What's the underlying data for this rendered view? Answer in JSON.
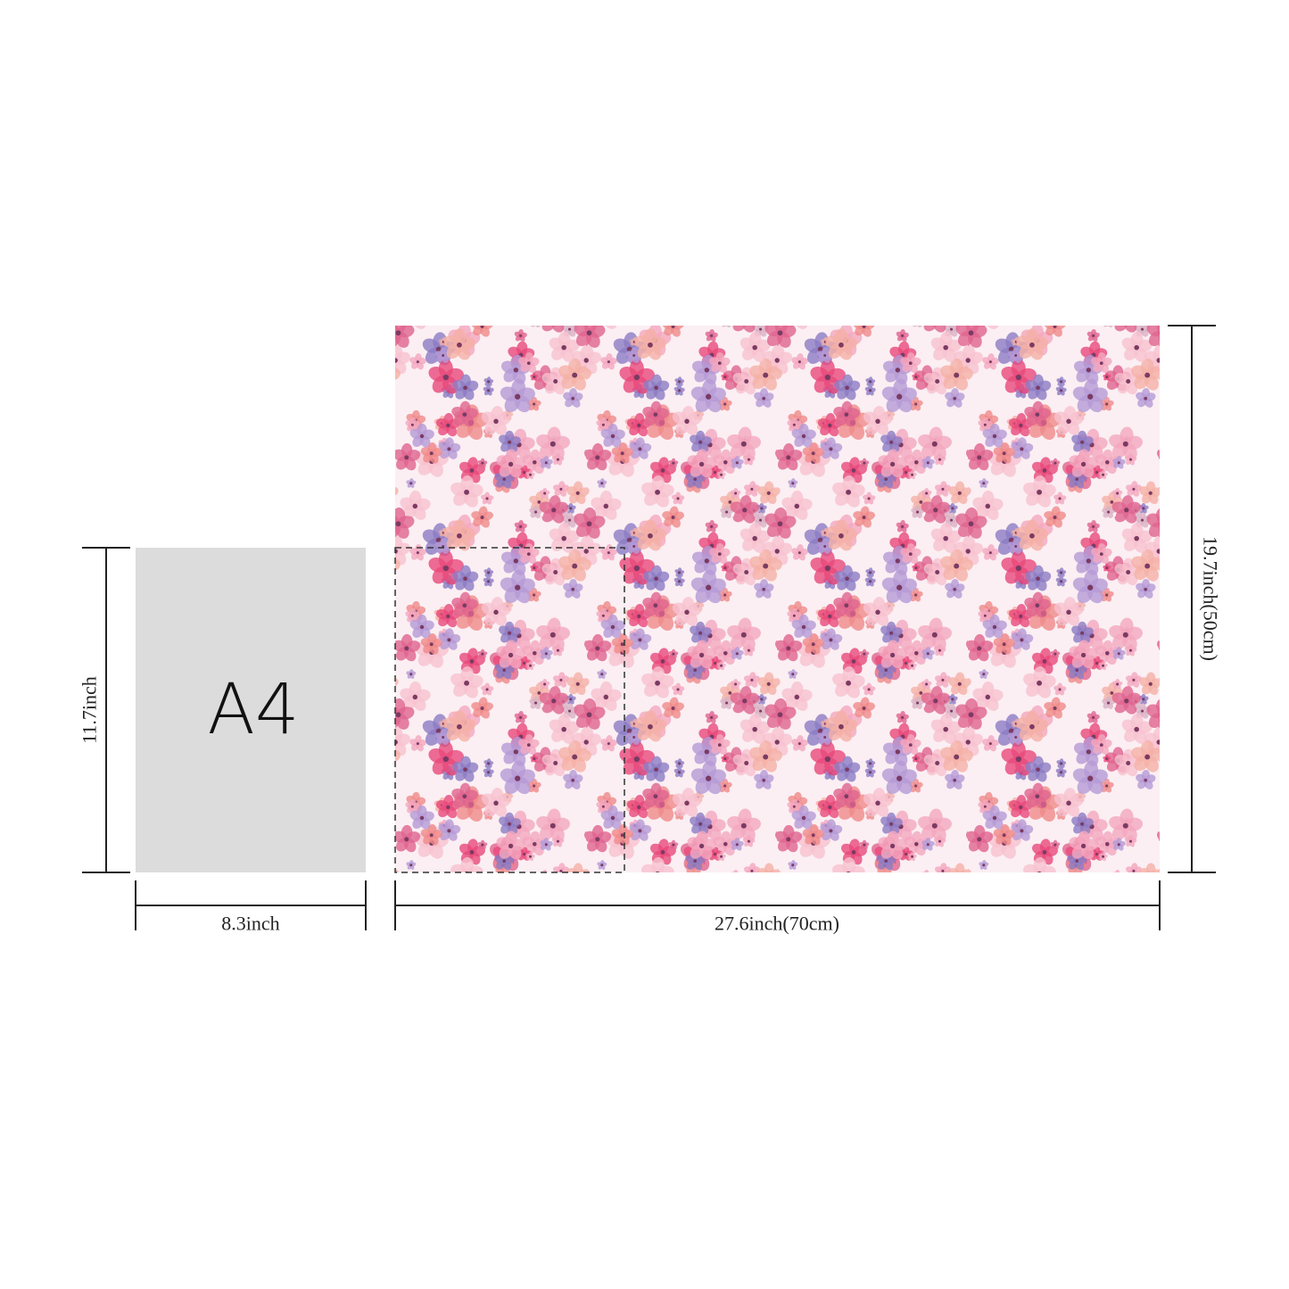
{
  "a4": {
    "label": "A4",
    "height": "11.7inch",
    "width": "8.3inch"
  },
  "paper": {
    "width": "27.6inch(70cm)",
    "height": "19.7inch(50cm)"
  }
}
